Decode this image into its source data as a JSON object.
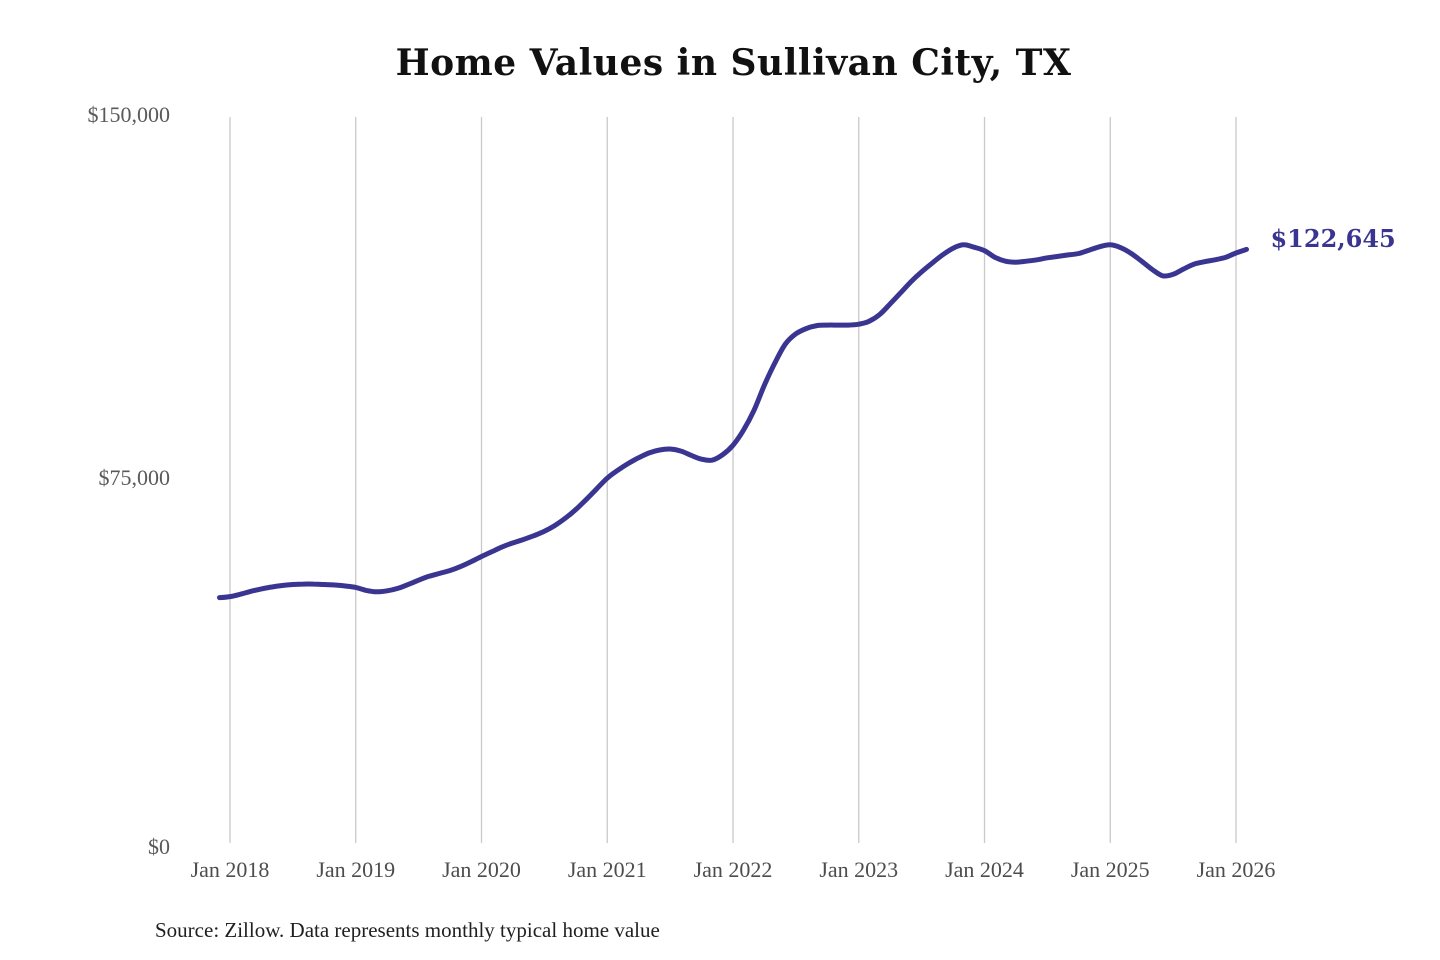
{
  "title": "Home Values in Sullivan City, TX",
  "source_note": "Source: Zillow. Data represents monthly typical home value",
  "end_label": "$122,645",
  "colors": {
    "line": "#3b3592",
    "end_label": "#3b3592",
    "gridline": "#c9c9c9",
    "background": "#ffffff"
  },
  "chart_data": {
    "type": "line",
    "title": "Home Values in Sullivan City, TX",
    "ylabel": "",
    "xlabel": "",
    "ylim": [
      0,
      150000
    ],
    "unit": "USD",
    "cadence": "monthly",
    "x_start_month": "Dec 2017",
    "x_end_month": "Feb 2026",
    "grid": "vertical-only",
    "legend": "none",
    "y_ticks": [
      {
        "value": 0,
        "label": "$0"
      },
      {
        "value": 75000,
        "label": "$75,000"
      },
      {
        "value": 150000,
        "label": "$150,000"
      }
    ],
    "x_ticks": [
      {
        "month_index": 1,
        "label": "Jan 2018"
      },
      {
        "month_index": 13,
        "label": "Jan 2019"
      },
      {
        "month_index": 25,
        "label": "Jan 2020"
      },
      {
        "month_index": 37,
        "label": "Jan 2021"
      },
      {
        "month_index": 49,
        "label": "Jan 2022"
      },
      {
        "month_index": 61,
        "label": "Jan 2023"
      },
      {
        "month_index": 73,
        "label": "Jan 2024"
      },
      {
        "month_index": 85,
        "label": "Jan 2025"
      },
      {
        "month_index": 97,
        "label": "Jan 2026"
      }
    ],
    "series": [
      {
        "name": "Typical home value",
        "monthly_values": [
          50700,
          50900,
          51400,
          52000,
          52500,
          52900,
          53200,
          53400,
          53500,
          53500,
          53400,
          53300,
          53100,
          52800,
          52200,
          51900,
          52100,
          52600,
          53400,
          54300,
          55100,
          55700,
          56300,
          57100,
          58100,
          59200,
          60200,
          61200,
          62000,
          62700,
          63500,
          64400,
          65600,
          67100,
          68900,
          71000,
          73200,
          75400,
          77000,
          78400,
          79600,
          80600,
          81200,
          81400,
          81000,
          80100,
          79300,
          79100,
          80200,
          82200,
          85300,
          89400,
          94600,
          99200,
          103100,
          105200,
          106300,
          106900,
          107000,
          107000,
          107000,
          107200,
          107800,
          109200,
          111400,
          113700,
          116000,
          118000,
          119800,
          121500,
          122900,
          123600,
          123100,
          122400,
          121000,
          120200,
          120000,
          120200,
          120500,
          120900,
          121200,
          121500,
          121800,
          122500,
          123200,
          123600,
          123000,
          121800,
          120200,
          118500,
          117200,
          117500,
          118600,
          119600,
          120100,
          120500,
          121000,
          121900,
          122645
        ]
      }
    ],
    "last_value": 122645,
    "last_value_label": "$122,645"
  }
}
